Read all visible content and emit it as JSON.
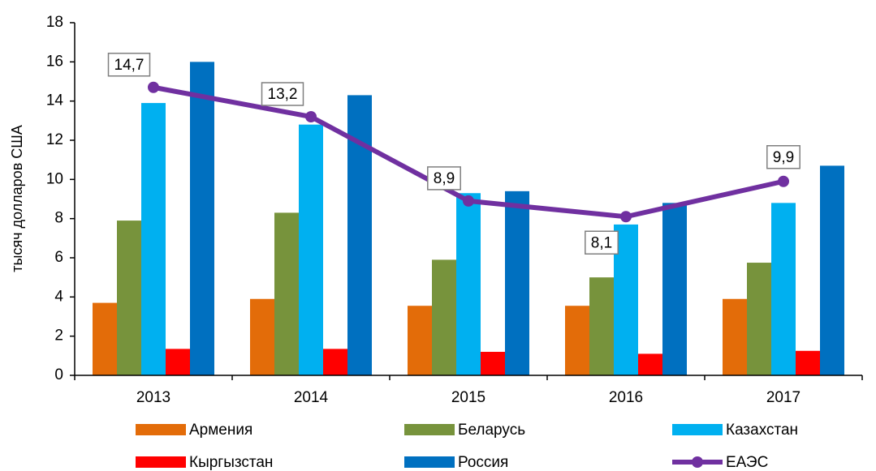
{
  "chart_data": {
    "type": "bar",
    "y_label": "тысяч долларов США",
    "categories": [
      "2013",
      "2014",
      "2015",
      "2016",
      "2017"
    ],
    "series": [
      {
        "name": "Армения",
        "color": "#e36c09",
        "values": [
          3.7,
          3.9,
          3.55,
          3.55,
          3.9
        ]
      },
      {
        "name": "Беларусь",
        "color": "#77933c",
        "values": [
          7.9,
          8.3,
          5.9,
          5.0,
          5.75
        ]
      },
      {
        "name": "Казахстан",
        "color": "#00b0f0",
        "values": [
          13.9,
          12.8,
          9.3,
          7.7,
          8.8
        ]
      },
      {
        "name": "Кыргызстан",
        "color": "#ff0000",
        "values": [
          1.35,
          1.35,
          1.2,
          1.1,
          1.25
        ]
      },
      {
        "name": "Россия",
        "color": "#0070c0",
        "values": [
          16.0,
          14.3,
          9.4,
          8.8,
          10.7
        ]
      },
      {
        "name": "ЕАЭС",
        "color": "#7030a0",
        "type": "line",
        "values": [
          14.7,
          13.2,
          8.9,
          8.1,
          9.9
        ],
        "value_labels": [
          "14,7",
          "13,2",
          "8,9",
          "8,1",
          "9,9"
        ]
      }
    ],
    "ylim": [
      0,
      18
    ],
    "yticks": [
      0,
      2,
      4,
      6,
      8,
      10,
      12,
      14,
      16,
      18
    ],
    "grid": false,
    "legend": "bottom"
  }
}
